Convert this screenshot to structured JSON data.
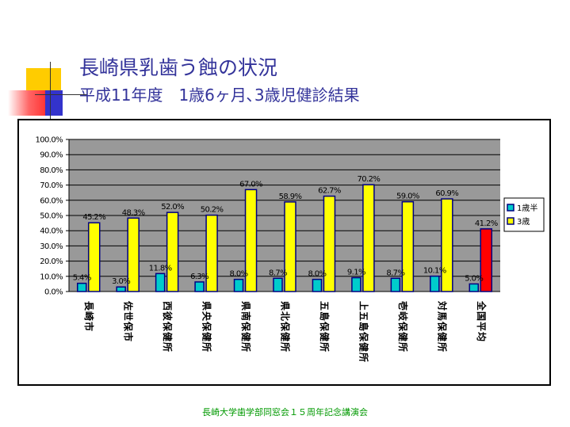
{
  "slide": {
    "title": "長崎県乳歯う蝕の状況",
    "subtitle": "平成11年度　1歳6ヶ月､3歳児健診結果",
    "footer": "長崎大学歯学部同窓会１５周年記念講演会"
  },
  "colors": {
    "title": "#33339a",
    "plot_bg": "#999999",
    "series_1": "#00cccc",
    "series_2": "#ffff00",
    "series_2_highlight": "#ff0000",
    "bar_border": "#000080",
    "footer": "#009900"
  },
  "chart_data": {
    "type": "bar",
    "categories": [
      "長崎市",
      "佐世保市",
      "西彼保健所",
      "県央保健所",
      "県南保健所",
      "県北保健所",
      "五島保健所",
      "上五島保健所",
      "壱岐保健所",
      "対馬保健所",
      "全国平均"
    ],
    "series": [
      {
        "name": "1歳半",
        "values": [
          5.4,
          3.0,
          11.8,
          6.3,
          8.0,
          8.7,
          8.0,
          9.1,
          8.7,
          10.1,
          5.0
        ],
        "labels": [
          "5.4%",
          "3.0%",
          "11.8%",
          "6.3%",
          "8.0%",
          "8.7%",
          "8.0%",
          "9.1%",
          "8.7%",
          "10.1%",
          "5.0%"
        ]
      },
      {
        "name": "3歳",
        "values": [
          45.2,
          48.3,
          52.0,
          50.2,
          67.0,
          58.9,
          62.7,
          70.2,
          59.0,
          60.9,
          41.2
        ],
        "labels": [
          "45.2%",
          "48.3%",
          "52.0%",
          "50.2%",
          "67.0%",
          "58.9%",
          "62.7%",
          "70.2%",
          "59.0%",
          "60.9%",
          "41.2%"
        ]
      }
    ],
    "y_ticks": [
      "0.0%",
      "10.0%",
      "20.0%",
      "30.0%",
      "40.0%",
      "50.0%",
      "60.0%",
      "70.0%",
      "80.0%",
      "90.0%",
      "100.0%"
    ],
    "ylim": [
      0,
      100
    ],
    "grid": true,
    "legend": "right",
    "highlight_category": "全国平均"
  }
}
